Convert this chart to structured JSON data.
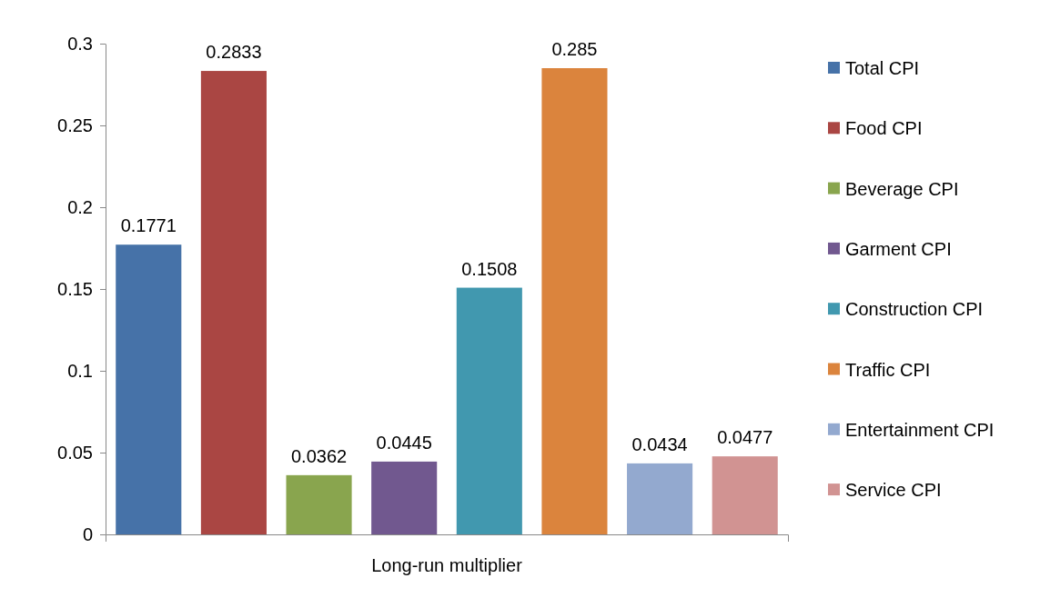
{
  "chart_data": {
    "type": "bar",
    "categories": [
      "Long-run multiplier"
    ],
    "series": [
      {
        "name": "Total CPI",
        "color": "#4672a8",
        "values": [
          0.1771
        ]
      },
      {
        "name": "Food CPI",
        "color": "#aa4643",
        "values": [
          0.2833
        ]
      },
      {
        "name": "Beverage CPI",
        "color": "#89a54e",
        "values": [
          0.0362
        ]
      },
      {
        "name": "Garment CPI",
        "color": "#71588f",
        "values": [
          0.0445
        ]
      },
      {
        "name": "Construction CPI",
        "color": "#4198af",
        "values": [
          0.1508
        ]
      },
      {
        "name": "Traffic CPI",
        "color": "#db843d",
        "values": [
          0.285
        ]
      },
      {
        "name": "Entertainment CPI",
        "color": "#93a9cf",
        "values": [
          0.0434
        ]
      },
      {
        "name": "Service CPI",
        "color": "#d19392",
        "values": [
          0.0477
        ]
      }
    ],
    "ylim": [
      0,
      0.3
    ],
    "yticks": [
      0,
      0.05,
      0.1,
      0.15,
      0.2,
      0.25,
      0.3
    ],
    "grid": false,
    "legend": "right",
    "data_labels": true
  }
}
